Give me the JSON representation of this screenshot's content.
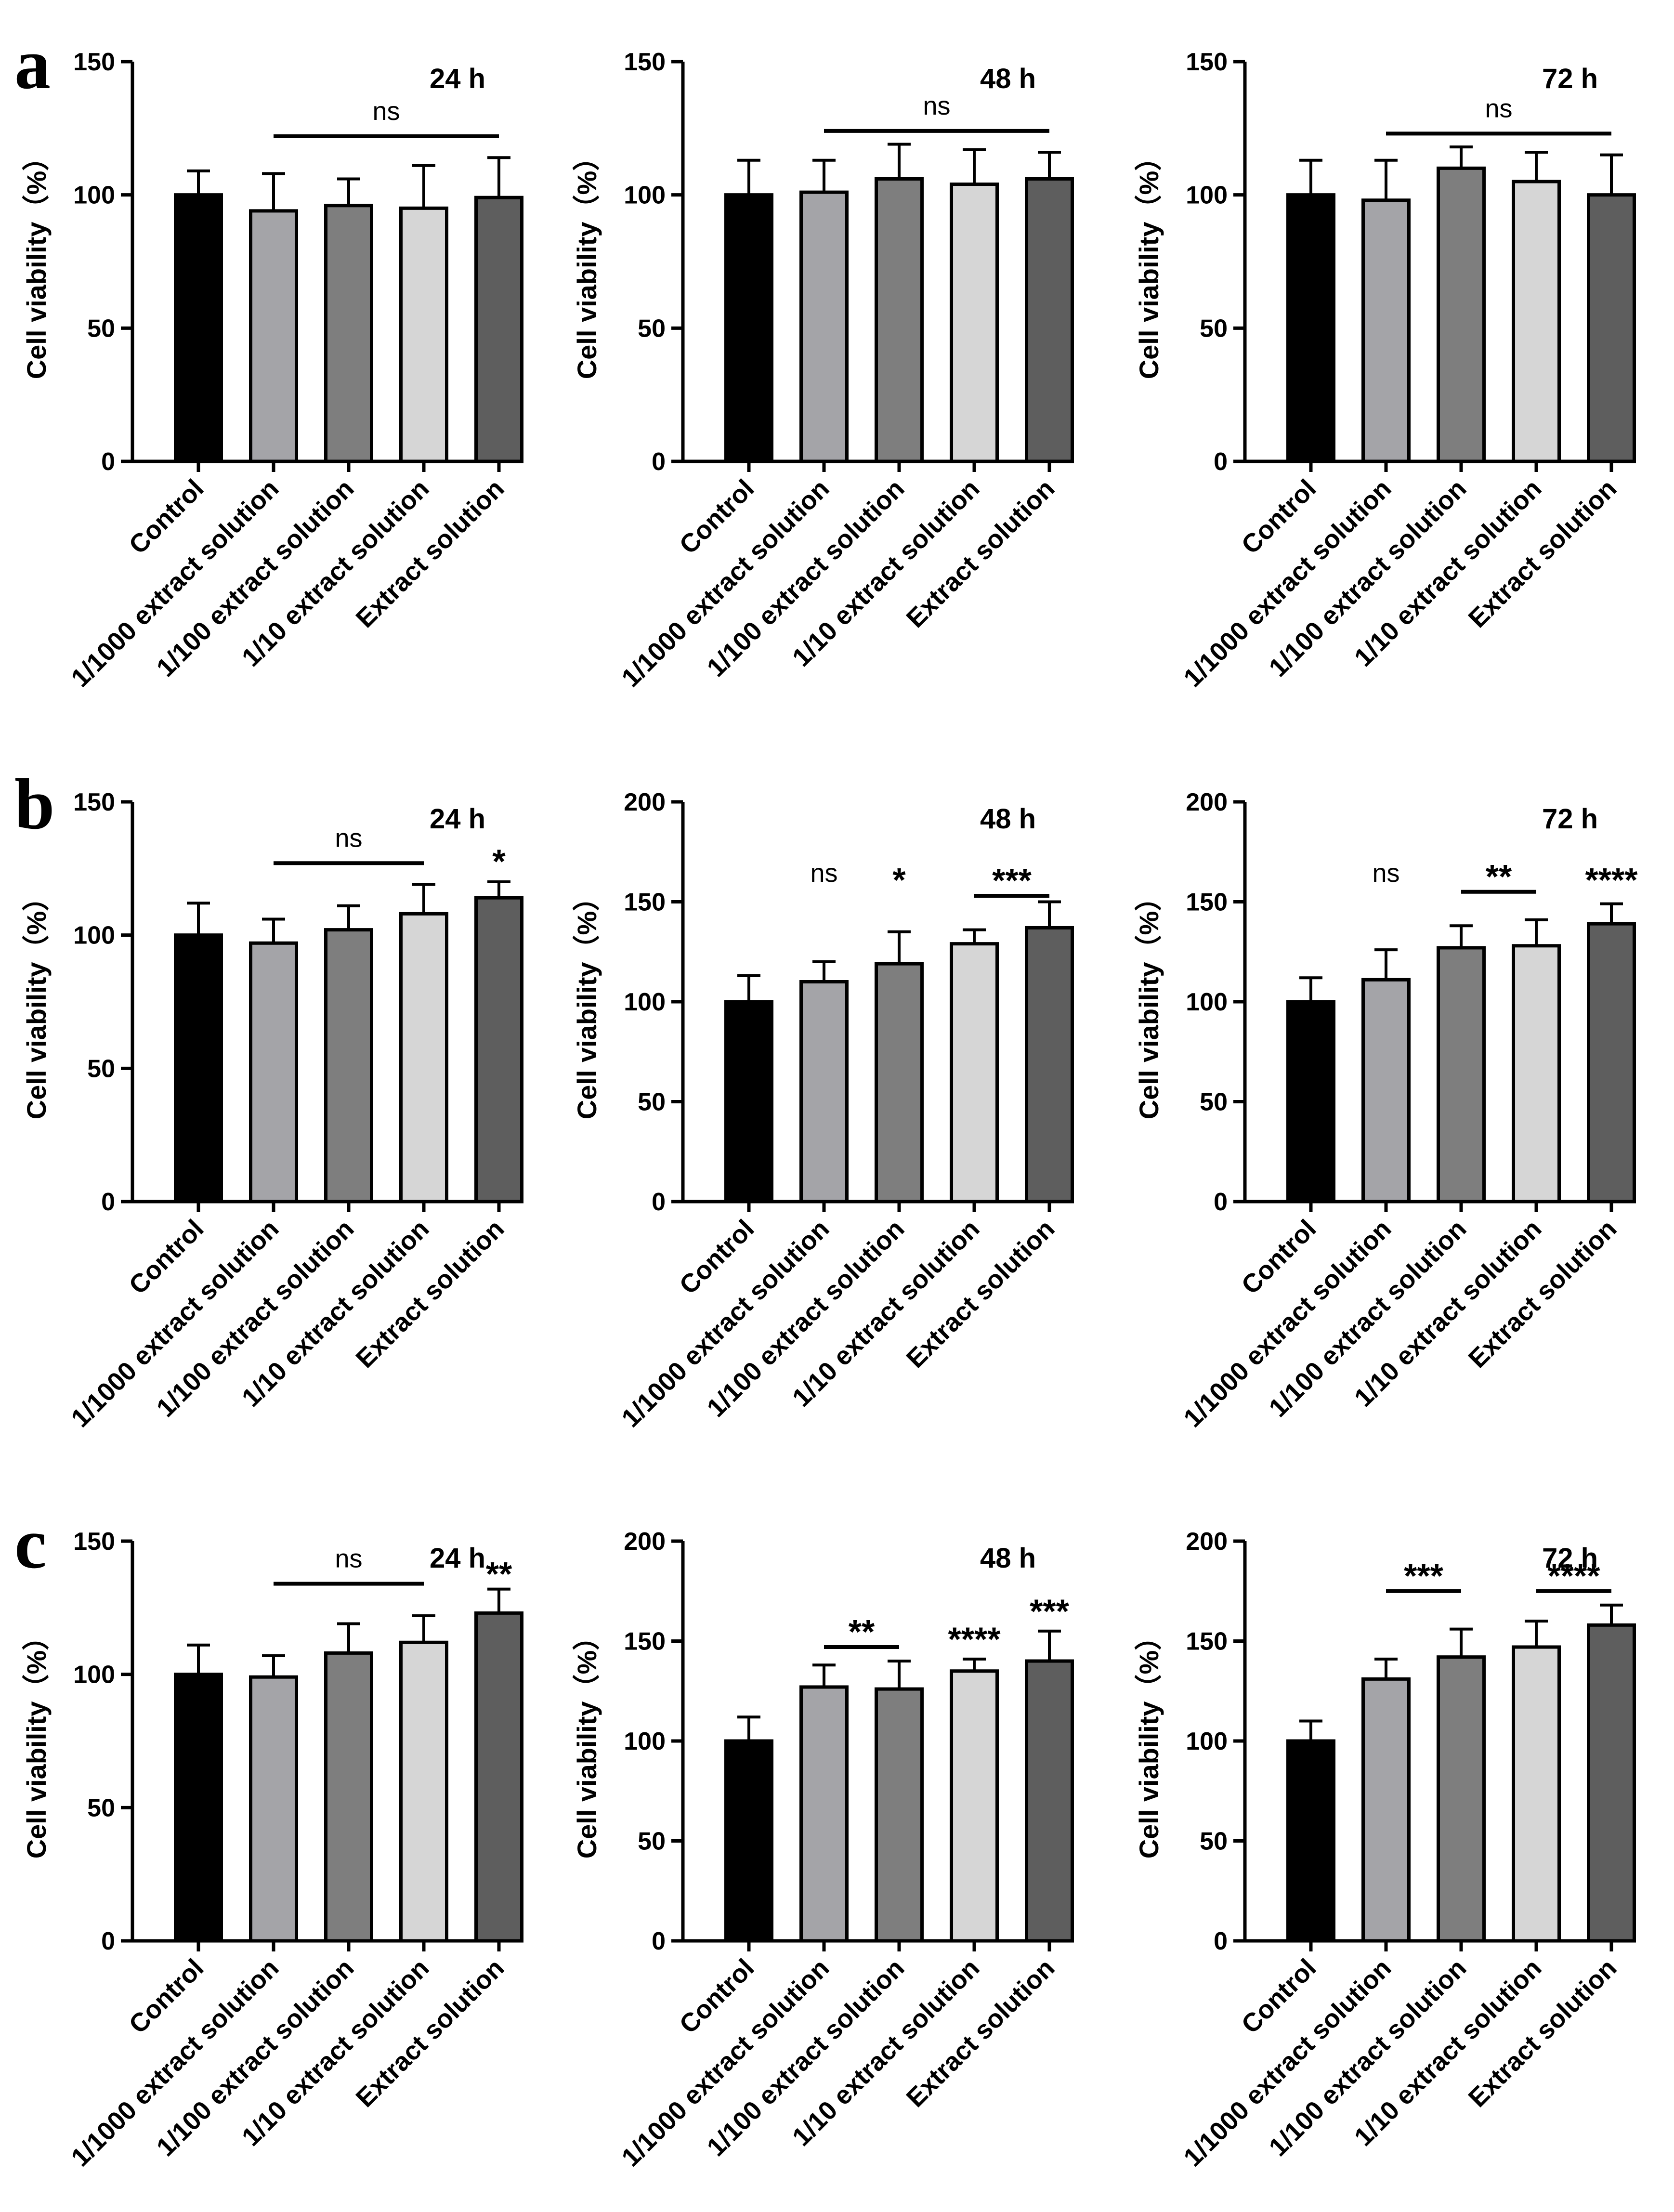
{
  "row_labels": [
    "a",
    "b",
    "c"
  ],
  "categories": [
    "Control",
    "1/1000 extract solution",
    "1/100 extract solution",
    "1/10 extract solution",
    "Extract solution"
  ],
  "bar_colors": [
    "#000000",
    "#a4a4a8",
    "#7e7e7e",
    "#d6d6d6",
    "#5e5e5e"
  ],
  "ylabel": "Cell viability（%）",
  "chart_data": [
    {
      "type": "bar",
      "row": "a",
      "col": 0,
      "title": "24 h",
      "ylim": [
        0,
        150
      ],
      "yticks": [
        0,
        50,
        100,
        150
      ],
      "values": [
        100,
        94,
        96,
        95,
        99
      ],
      "errors": [
        9,
        14,
        10,
        16,
        15
      ],
      "sig": [
        {
          "text": "ns",
          "from": 1,
          "to": 4,
          "bar": true,
          "at": 122
        }
      ]
    },
    {
      "type": "bar",
      "row": "a",
      "col": 1,
      "title": "48 h",
      "ylim": [
        0,
        150
      ],
      "yticks": [
        0,
        50,
        100,
        150
      ],
      "values": [
        100,
        101,
        106,
        104,
        106
      ],
      "errors": [
        13,
        12,
        13,
        13,
        10
      ],
      "sig": [
        {
          "text": "ns",
          "from": 1,
          "to": 4,
          "bar": true,
          "at": 124
        }
      ]
    },
    {
      "type": "bar",
      "row": "a",
      "col": 2,
      "title": "72 h",
      "ylim": [
        0,
        150
      ],
      "yticks": [
        0,
        50,
        100,
        150
      ],
      "values": [
        100,
        98,
        110,
        105,
        100
      ],
      "errors": [
        13,
        15,
        8,
        11,
        15
      ],
      "sig": [
        {
          "text": "ns",
          "from": 1,
          "to": 4,
          "bar": true,
          "at": 123
        }
      ]
    },
    {
      "type": "bar",
      "row": "b",
      "col": 0,
      "title": "24 h",
      "ylim": [
        0,
        150
      ],
      "yticks": [
        0,
        50,
        100,
        150
      ],
      "values": [
        100,
        97,
        102,
        108,
        114
      ],
      "errors": [
        12,
        9,
        9,
        11,
        6
      ],
      "sig": [
        {
          "text": "ns",
          "from": 1,
          "to": 3,
          "bar": true,
          "at": 127
        },
        {
          "text": "*",
          "from": 4,
          "to": 4,
          "bar": false,
          "at": 127
        }
      ]
    },
    {
      "type": "bar",
      "row": "b",
      "col": 1,
      "title": "48 h",
      "ylim": [
        0,
        200
      ],
      "yticks": [
        0,
        50,
        100,
        150,
        200
      ],
      "values": [
        100,
        110,
        119,
        129,
        137
      ],
      "errors": [
        13,
        10,
        16,
        7,
        13
      ],
      "sig": [
        {
          "text": "ns",
          "from": 1,
          "to": 1,
          "bar": false,
          "at": 160
        },
        {
          "text": "*",
          "from": 2,
          "to": 2,
          "bar": false,
          "at": 160
        },
        {
          "text": "***",
          "from": 3,
          "to": 4,
          "bar": true,
          "at": 153
        }
      ]
    },
    {
      "type": "bar",
      "row": "b",
      "col": 2,
      "title": "72 h",
      "ylim": [
        0,
        200
      ],
      "yticks": [
        0,
        50,
        100,
        150,
        200
      ],
      "values": [
        100,
        111,
        127,
        128,
        139
      ],
      "errors": [
        12,
        15,
        11,
        13,
        10
      ],
      "sig": [
        {
          "text": "ns",
          "from": 1,
          "to": 1,
          "bar": false,
          "at": 160
        },
        {
          "text": "**",
          "from": 2,
          "to": 3,
          "bar": true,
          "at": 155
        },
        {
          "text": "****",
          "from": 4,
          "to": 4,
          "bar": false,
          "at": 160
        }
      ]
    },
    {
      "type": "bar",
      "row": "c",
      "col": 0,
      "title": "24 h",
      "ylim": [
        0,
        150
      ],
      "yticks": [
        0,
        50,
        100,
        150
      ],
      "values": [
        100,
        99,
        108,
        112,
        123
      ],
      "errors": [
        11,
        8,
        11,
        10,
        9
      ],
      "sig": [
        {
          "text": "ns",
          "from": 1,
          "to": 3,
          "bar": true,
          "at": 134
        },
        {
          "text": "**",
          "from": 4,
          "to": 4,
          "bar": false,
          "at": 137
        }
      ]
    },
    {
      "type": "bar",
      "row": "c",
      "col": 1,
      "title": "48 h",
      "ylim": [
        0,
        200
      ],
      "yticks": [
        0,
        50,
        100,
        150,
        200
      ],
      "values": [
        100,
        127,
        126,
        135,
        140
      ],
      "errors": [
        12,
        11,
        14,
        6,
        15
      ],
      "sig": [
        {
          "text": "**",
          "from": 1,
          "to": 2,
          "bar": true,
          "at": 147
        },
        {
          "text": "****",
          "from": 3,
          "to": 3,
          "bar": false,
          "at": 150
        },
        {
          "text": "***",
          "from": 4,
          "to": 4,
          "bar": false,
          "at": 164
        }
      ]
    },
    {
      "type": "bar",
      "row": "c",
      "col": 2,
      "title": "72 h",
      "ylim": [
        0,
        200
      ],
      "yticks": [
        0,
        50,
        100,
        150,
        200
      ],
      "values": [
        100,
        131,
        142,
        147,
        158
      ],
      "errors": [
        10,
        10,
        14,
        13,
        10
      ],
      "sig": [
        {
          "text": "***",
          "from": 1,
          "to": 2,
          "bar": true,
          "at": 175
        },
        {
          "text": "****",
          "from": 3,
          "to": 4,
          "bar": true,
          "at": 175
        }
      ]
    }
  ]
}
